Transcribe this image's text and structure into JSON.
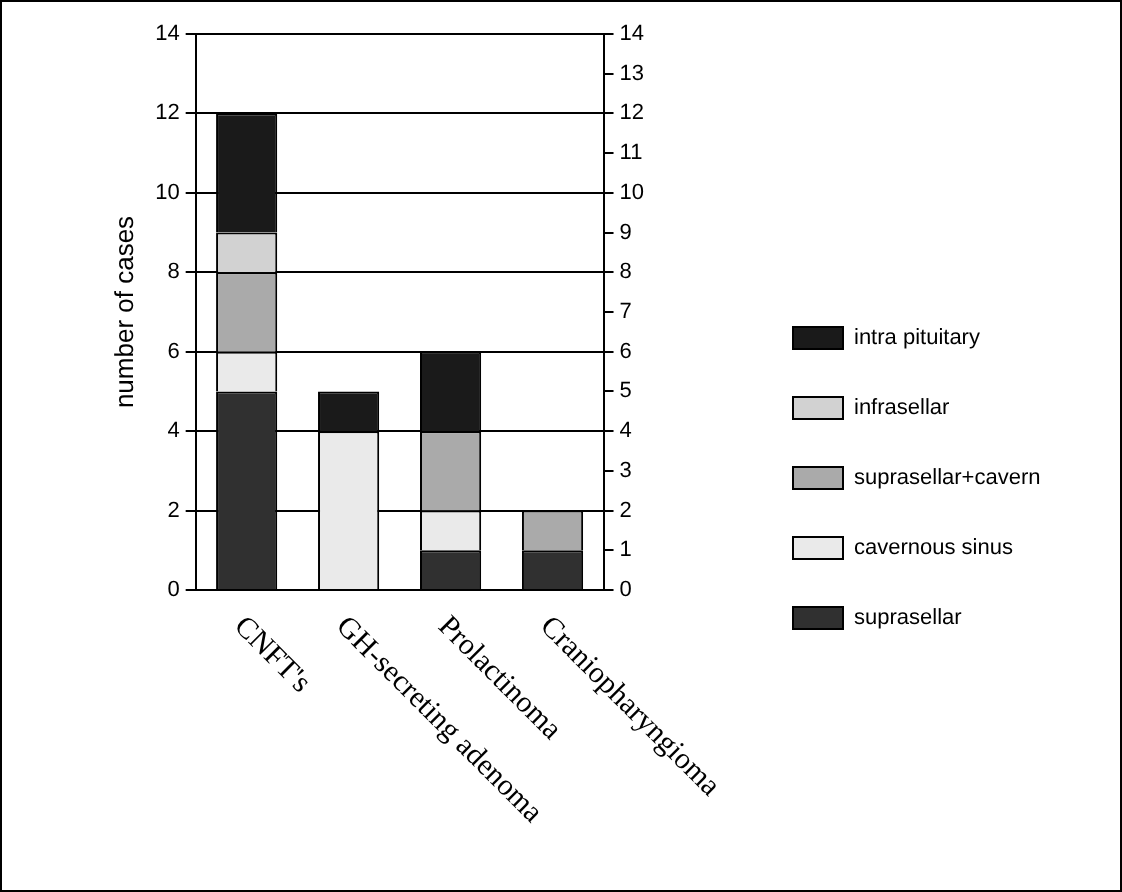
{
  "chart_data": {
    "type": "bar",
    "stacked": true,
    "ylabel": "number of cases",
    "categories": [
      "CNFT's",
      "GH-secreting adenoma",
      "Prolactinoma",
      "Craniopharyngioma"
    ],
    "series": [
      {
        "name": "suprasellar",
        "color": "#303030",
        "values": [
          5,
          0,
          1,
          1
        ]
      },
      {
        "name": "cavernous sinus",
        "color": "#eaeaea",
        "values": [
          1,
          4,
          1,
          0
        ]
      },
      {
        "name": "suprasellar+cavern",
        "color": "#aaaaaa",
        "values": [
          2,
          0,
          2,
          1
        ]
      },
      {
        "name": "infrasellar",
        "color": "#d2d2d2",
        "values": [
          1,
          0,
          0,
          0
        ]
      },
      {
        "name": "intra pituitary",
        "color": "#1a1a1a",
        "values": [
          3,
          1,
          2,
          0
        ]
      }
    ],
    "ylim": [
      0,
      14
    ],
    "yticks": [
      0,
      2,
      4,
      6,
      8,
      10,
      12,
      14
    ],
    "y2lim": [
      0,
      14
    ],
    "y2ticks": [
      0,
      1,
      2,
      3,
      4,
      5,
      6,
      7,
      8,
      9,
      10,
      11,
      12,
      13,
      14
    ],
    "grid": "y",
    "legend": "right"
  }
}
